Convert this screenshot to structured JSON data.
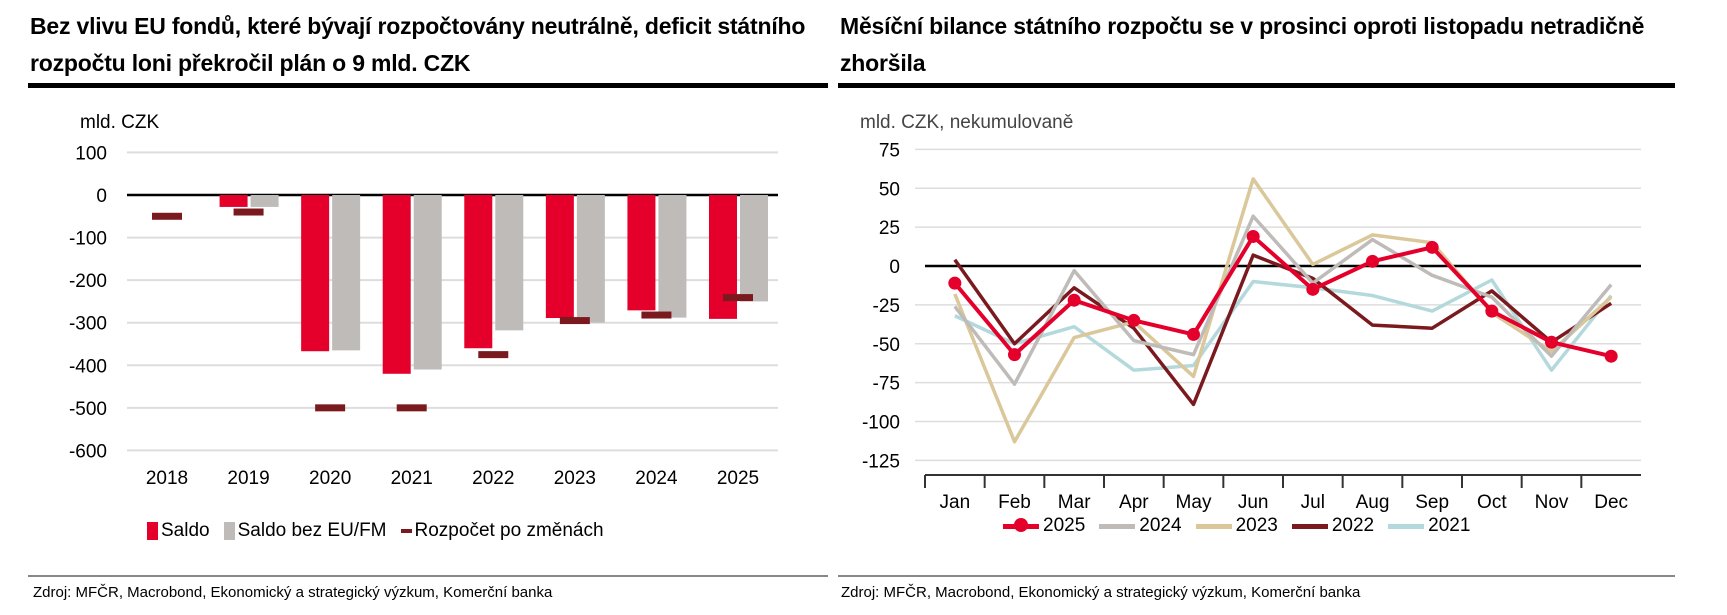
{
  "left": {
    "title": "Bez vlivu EU fondů, které bývají rozpočtovány neutrálně, deficit státního rozpočtu loni překročil plán o 9 mld. CZK",
    "source": "Zdroj: MFČR, Macrobond, Ekonomický a strategický výzkum, Komerční banka"
  },
  "right": {
    "title": "Měsíční bilance státního rozpočtu se v prosinci oproti listopadu netradičně zhoršila",
    "source": "Zdroj: MFČR, Macrobond, Ekonomický a strategický výzkum, Komerční banka"
  },
  "chart_data": [
    {
      "type": "bar",
      "ylabel": "mld. CZK",
      "ylim": [
        -600,
        100
      ],
      "yticks": [
        100,
        0,
        -100,
        -200,
        -300,
        -400,
        -500,
        -600
      ],
      "grid": true,
      "legend": "bottom",
      "categories": [
        "2018",
        "2019",
        "2020",
        "2021",
        "2022",
        "2023",
        "2024",
        "2025"
      ],
      "series": [
        {
          "name": "Saldo",
          "kind": "bar",
          "color": "#e4002b",
          "values": [
            null,
            -28,
            -367,
            -420,
            -360,
            -289,
            -271,
            -291
          ]
        },
        {
          "name": "Saldo bez EU/FM",
          "kind": "bar",
          "color": "#bfbbb9",
          "values": [
            null,
            -28,
            -365,
            -410,
            -318,
            -300,
            -288,
            -250
          ]
        },
        {
          "name": "Rozpočet po změnách",
          "kind": "marker",
          "color": "#7b1a1e",
          "values": [
            -50,
            -40,
            -500,
            -500,
            -375,
            -295,
            -282,
            -241
          ]
        }
      ]
    },
    {
      "type": "line",
      "ylabel": "mld. CZK, nekumulovaně",
      "ylim": [
        -125,
        75
      ],
      "yticks": [
        75,
        50,
        25,
        0,
        -25,
        -50,
        -75,
        -100,
        -125
      ],
      "grid": true,
      "legend": "bottom",
      "categories": [
        "Jan",
        "Feb",
        "Mar",
        "Apr",
        "May",
        "Jun",
        "Jul",
        "Aug",
        "Sep",
        "Oct",
        "Nov",
        "Dec"
      ],
      "series": [
        {
          "name": "2021",
          "color": "#b4d9dc",
          "values": [
            -32,
            -50,
            -39,
            -67,
            -64,
            -10,
            -14,
            -19,
            -29,
            -9,
            -67,
            -19
          ]
        },
        {
          "name": "2022",
          "color": "#7b1a1e",
          "values": [
            4,
            -50,
            -14,
            -40,
            -89,
            7,
            -8,
            -38,
            -40,
            -16,
            -49,
            -24
          ]
        },
        {
          "name": "2023",
          "color": "#dac79a",
          "values": [
            -18,
            -113,
            -46,
            -36,
            -71,
            56,
            1,
            20,
            15,
            -30,
            -55,
            -20
          ]
        },
        {
          "name": "2024",
          "color": "#bfbbb9",
          "values": [
            -26,
            -76,
            -3,
            -48,
            -57,
            32,
            -11,
            17,
            -6,
            -20,
            -58,
            -12
          ]
        },
        {
          "name": "2025",
          "color": "#e4002b",
          "markers": true,
          "values": [
            -11,
            -57,
            -22,
            -35,
            -44,
            19,
            -15,
            3,
            12,
            -29,
            -49,
            -58
          ]
        }
      ],
      "legend_order": [
        "2025",
        "2024",
        "2023",
        "2022",
        "2021"
      ]
    }
  ]
}
